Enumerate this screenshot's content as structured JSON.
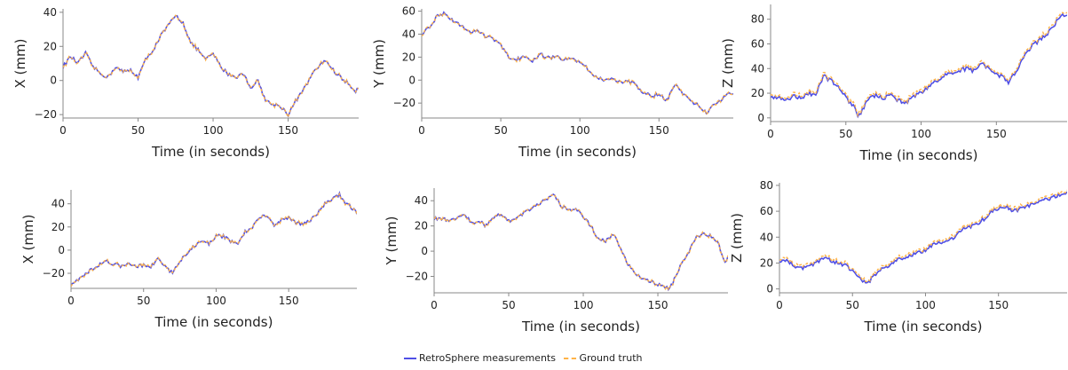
{
  "colors": {
    "measured": "#4f4fe6",
    "truth": "#ffb347",
    "axis": "#888888",
    "text": "#222222"
  },
  "legend": {
    "measured": "RetroSphere measurements",
    "truth": "Ground truth"
  },
  "chart_data": [
    {
      "type": "line",
      "id": "r1c1",
      "xlabel": "Time (in seconds)",
      "ylabel": "X (mm)",
      "xlim": [
        0,
        197
      ],
      "ylim": [
        -22,
        42
      ],
      "xticks": [
        0,
        50,
        100,
        150
      ],
      "yticks": [
        -20,
        0,
        20,
        40
      ],
      "keypoints": [
        [
          0,
          8
        ],
        [
          5,
          14
        ],
        [
          10,
          10
        ],
        [
          15,
          16
        ],
        [
          20,
          8
        ],
        [
          25,
          4
        ],
        [
          30,
          2
        ],
        [
          35,
          8
        ],
        [
          40,
          5
        ],
        [
          45,
          6
        ],
        [
          50,
          2
        ],
        [
          55,
          12
        ],
        [
          60,
          18
        ],
        [
          65,
          26
        ],
        [
          70,
          32
        ],
        [
          75,
          38
        ],
        [
          80,
          34
        ],
        [
          85,
          22
        ],
        [
          90,
          18
        ],
        [
          95,
          12
        ],
        [
          100,
          16
        ],
        [
          105,
          8
        ],
        [
          110,
          4
        ],
        [
          115,
          2
        ],
        [
          120,
          4
        ],
        [
          125,
          -4
        ],
        [
          130,
          0
        ],
        [
          135,
          -12
        ],
        [
          140,
          -14
        ],
        [
          145,
          -15
        ],
        [
          150,
          -20
        ],
        [
          155,
          -12
        ],
        [
          160,
          -6
        ],
        [
          165,
          2
        ],
        [
          170,
          8
        ],
        [
          175,
          12
        ],
        [
          180,
          6
        ],
        [
          185,
          2
        ],
        [
          190,
          -2
        ],
        [
          195,
          -6
        ],
        [
          197,
          -4
        ]
      ],
      "series": [
        {
          "name": "RetroSphere measurements"
        },
        {
          "name": "Ground truth"
        }
      ]
    },
    {
      "type": "line",
      "id": "r1c2",
      "xlabel": "Time (in seconds)",
      "ylabel": "Y (mm)",
      "xlim": [
        0,
        197
      ],
      "ylim": [
        -33,
        62
      ],
      "xticks": [
        0,
        50,
        100,
        150
      ],
      "yticks": [
        -20,
        0,
        20,
        40,
        60
      ],
      "keypoints": [
        [
          0,
          40
        ],
        [
          5,
          47
        ],
        [
          10,
          56
        ],
        [
          15,
          58
        ],
        [
          20,
          52
        ],
        [
          25,
          48
        ],
        [
          30,
          42
        ],
        [
          35,
          44
        ],
        [
          40,
          38
        ],
        [
          45,
          36
        ],
        [
          50,
          30
        ],
        [
          55,
          20
        ],
        [
          60,
          18
        ],
        [
          65,
          20
        ],
        [
          70,
          16
        ],
        [
          75,
          22
        ],
        [
          80,
          20
        ],
        [
          85,
          20
        ],
        [
          90,
          18
        ],
        [
          95,
          20
        ],
        [
          100,
          15
        ],
        [
          105,
          10
        ],
        [
          110,
          3
        ],
        [
          115,
          0
        ],
        [
          120,
          2
        ],
        [
          125,
          -2
        ],
        [
          130,
          0
        ],
        [
          135,
          -4
        ],
        [
          140,
          -10
        ],
        [
          145,
          -14
        ],
        [
          150,
          -12
        ],
        [
          155,
          -18
        ],
        [
          160,
          -4
        ],
        [
          165,
          -12
        ],
        [
          170,
          -18
        ],
        [
          175,
          -22
        ],
        [
          180,
          -28
        ],
        [
          185,
          -22
        ],
        [
          190,
          -16
        ],
        [
          195,
          -10
        ],
        [
          197,
          -12
        ]
      ],
      "series": [
        {
          "name": "RetroSphere measurements"
        },
        {
          "name": "Ground truth"
        }
      ]
    },
    {
      "type": "line",
      "id": "r1c3",
      "xlabel": "Time (in seconds)",
      "ylabel": "Z (mm)",
      "xlim": [
        0,
        197
      ],
      "ylim": [
        -3,
        92
      ],
      "xticks": [
        0,
        50,
        100,
        150
      ],
      "yticks": [
        0,
        20,
        40,
        60,
        80
      ],
      "keypoints": [
        [
          0,
          18
        ],
        [
          5,
          16
        ],
        [
          10,
          14
        ],
        [
          15,
          18
        ],
        [
          20,
          16
        ],
        [
          25,
          20
        ],
        [
          30,
          18
        ],
        [
          35,
          34
        ],
        [
          40,
          30
        ],
        [
          45,
          26
        ],
        [
          50,
          16
        ],
        [
          55,
          10
        ],
        [
          58,
          1
        ],
        [
          62,
          8
        ],
        [
          65,
          16
        ],
        [
          70,
          18
        ],
        [
          75,
          16
        ],
        [
          80,
          18
        ],
        [
          85,
          14
        ],
        [
          90,
          12
        ],
        [
          95,
          18
        ],
        [
          100,
          20
        ],
        [
          105,
          26
        ],
        [
          110,
          30
        ],
        [
          115,
          34
        ],
        [
          120,
          36
        ],
        [
          125,
          38
        ],
        [
          130,
          40
        ],
        [
          135,
          38
        ],
        [
          140,
          44
        ],
        [
          145,
          40
        ],
        [
          150,
          36
        ],
        [
          155,
          32
        ],
        [
          158,
          28
        ],
        [
          162,
          36
        ],
        [
          166,
          44
        ],
        [
          170,
          52
        ],
        [
          175,
          60
        ],
        [
          180,
          64
        ],
        [
          185,
          70
        ],
        [
          190,
          78
        ],
        [
          195,
          84
        ],
        [
          197,
          82
        ]
      ],
      "series": [
        {
          "name": "RetroSphere measurements"
        },
        {
          "name": "Ground truth"
        }
      ]
    },
    {
      "type": "line",
      "id": "r2c1",
      "xlabel": "Time (in seconds)",
      "ylabel": "X (mm)",
      "xlim": [
        0,
        197
      ],
      "ylim": [
        -33,
        52
      ],
      "xticks": [
        0,
        50,
        100,
        150
      ],
      "yticks": [
        -20,
        0,
        20,
        40
      ],
      "keypoints": [
        [
          0,
          -30
        ],
        [
          5,
          -26
        ],
        [
          10,
          -20
        ],
        [
          15,
          -16
        ],
        [
          20,
          -12
        ],
        [
          25,
          -10
        ],
        [
          30,
          -12
        ],
        [
          35,
          -14
        ],
        [
          40,
          -12
        ],
        [
          45,
          -14
        ],
        [
          50,
          -13
        ],
        [
          55,
          -14
        ],
        [
          60,
          -8
        ],
        [
          65,
          -14
        ],
        [
          70,
          -20
        ],
        [
          75,
          -10
        ],
        [
          80,
          -2
        ],
        [
          85,
          4
        ],
        [
          90,
          8
        ],
        [
          95,
          6
        ],
        [
          100,
          12
        ],
        [
          105,
          12
        ],
        [
          110,
          8
        ],
        [
          115,
          6
        ],
        [
          120,
          16
        ],
        [
          125,
          20
        ],
        [
          130,
          28
        ],
        [
          135,
          30
        ],
        [
          140,
          22
        ],
        [
          145,
          26
        ],
        [
          150,
          28
        ],
        [
          155,
          24
        ],
        [
          160,
          22
        ],
        [
          165,
          26
        ],
        [
          170,
          32
        ],
        [
          175,
          40
        ],
        [
          180,
          44
        ],
        [
          185,
          48
        ],
        [
          188,
          42
        ],
        [
          192,
          38
        ],
        [
          197,
          32
        ]
      ],
      "series": [
        {
          "name": "RetroSphere measurements"
        },
        {
          "name": "Ground truth"
        }
      ]
    },
    {
      "type": "line",
      "id": "r2c2",
      "xlabel": "Time (in seconds)",
      "ylabel": "Y (mm)",
      "xlim": [
        0,
        197
      ],
      "ylim": [
        -33,
        50
      ],
      "xticks": [
        0,
        50,
        100,
        150
      ],
      "yticks": [
        -20,
        0,
        20,
        40
      ],
      "keypoints": [
        [
          0,
          26
        ],
        [
          5,
          26
        ],
        [
          10,
          24
        ],
        [
          15,
          26
        ],
        [
          20,
          30
        ],
        [
          25,
          22
        ],
        [
          30,
          24
        ],
        [
          35,
          20
        ],
        [
          40,
          26
        ],
        [
          45,
          30
        ],
        [
          50,
          24
        ],
        [
          55,
          26
        ],
        [
          60,
          30
        ],
        [
          65,
          34
        ],
        [
          70,
          38
        ],
        [
          75,
          40
        ],
        [
          80,
          46
        ],
        [
          85,
          36
        ],
        [
          90,
          32
        ],
        [
          95,
          34
        ],
        [
          100,
          28
        ],
        [
          105,
          20
        ],
        [
          110,
          10
        ],
        [
          115,
          8
        ],
        [
          120,
          14
        ],
        [
          125,
          2
        ],
        [
          130,
          -10
        ],
        [
          135,
          -18
        ],
        [
          140,
          -22
        ],
        [
          145,
          -24
        ],
        [
          150,
          -26
        ],
        [
          155,
          -28
        ],
        [
          158,
          -30
        ],
        [
          162,
          -20
        ],
        [
          166,
          -10
        ],
        [
          170,
          -2
        ],
        [
          175,
          10
        ],
        [
          180,
          14
        ],
        [
          185,
          12
        ],
        [
          190,
          8
        ],
        [
          195,
          -10
        ],
        [
          197,
          -4
        ]
      ],
      "series": [
        {
          "name": "RetroSphere measurements"
        },
        {
          "name": "Ground truth"
        }
      ]
    },
    {
      "type": "line",
      "id": "r2c3",
      "xlabel": "Time (in seconds)",
      "ylabel": "Z (mm)",
      "xlim": [
        0,
        197
      ],
      "ylim": [
        -3,
        82
      ],
      "xticks": [
        0,
        50,
        100,
        150
      ],
      "yticks": [
        0,
        20,
        40,
        60,
        80
      ],
      "keypoints": [
        [
          0,
          22
        ],
        [
          5,
          22
        ],
        [
          10,
          18
        ],
        [
          15,
          16
        ],
        [
          20,
          18
        ],
        [
          25,
          20
        ],
        [
          30,
          24
        ],
        [
          35,
          22
        ],
        [
          40,
          20
        ],
        [
          45,
          18
        ],
        [
          50,
          14
        ],
        [
          55,
          8
        ],
        [
          60,
          4
        ],
        [
          65,
          10
        ],
        [
          70,
          16
        ],
        [
          75,
          18
        ],
        [
          80,
          22
        ],
        [
          85,
          24
        ],
        [
          90,
          26
        ],
        [
          95,
          28
        ],
        [
          100,
          30
        ],
        [
          105,
          34
        ],
        [
          110,
          36
        ],
        [
          115,
          38
        ],
        [
          120,
          40
        ],
        [
          125,
          46
        ],
        [
          130,
          48
        ],
        [
          135,
          50
        ],
        [
          140,
          54
        ],
        [
          145,
          60
        ],
        [
          150,
          62
        ],
        [
          155,
          64
        ],
        [
          160,
          60
        ],
        [
          165,
          62
        ],
        [
          170,
          64
        ],
        [
          175,
          66
        ],
        [
          180,
          68
        ],
        [
          185,
          70
        ],
        [
          190,
          72
        ],
        [
          195,
          72
        ],
        [
          197,
          74
        ]
      ],
      "series": [
        {
          "name": "RetroSphere measurements"
        },
        {
          "name": "Ground truth"
        }
      ]
    }
  ]
}
